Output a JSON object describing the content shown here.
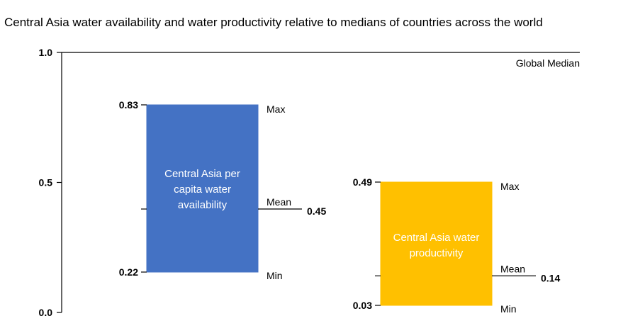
{
  "title": "Central Asia water availability and water productivity relative to medians of countries across the world",
  "chart_data": {
    "type": "range-bar",
    "title": "Central Asia water availability and water productivity relative to medians of countries across the world",
    "ylim": [
      0,
      1
    ],
    "y_ticks": [
      "0.0",
      "0.5",
      "1.0"
    ],
    "reference_line": {
      "label": "Global Median",
      "value": 1.0
    },
    "series": [
      {
        "name": "Central Asia per capita water availability",
        "label_lines": [
          "Central Asia per",
          "capita water",
          "availability"
        ],
        "max": 0.83,
        "min": 0.22,
        "mean": 0.45,
        "max_label": "0.83",
        "min_label": "0.22",
        "mean_value_label": "0.45",
        "color": "#4472C4",
        "text_color": "#ffffff"
      },
      {
        "name": "Central Asia water productivity",
        "label_lines": [
          "Central Asia water",
          "productivity"
        ],
        "max": 0.49,
        "min": 0.03,
        "mean": 0.14,
        "max_label": "0.49",
        "min_label": "0.03",
        "mean_value_label": "0.14",
        "color": "#FFC000",
        "text_color": "#ffffff"
      }
    ],
    "stat_labels": {
      "max": "Max",
      "mean": "Mean",
      "min": "Min"
    }
  }
}
